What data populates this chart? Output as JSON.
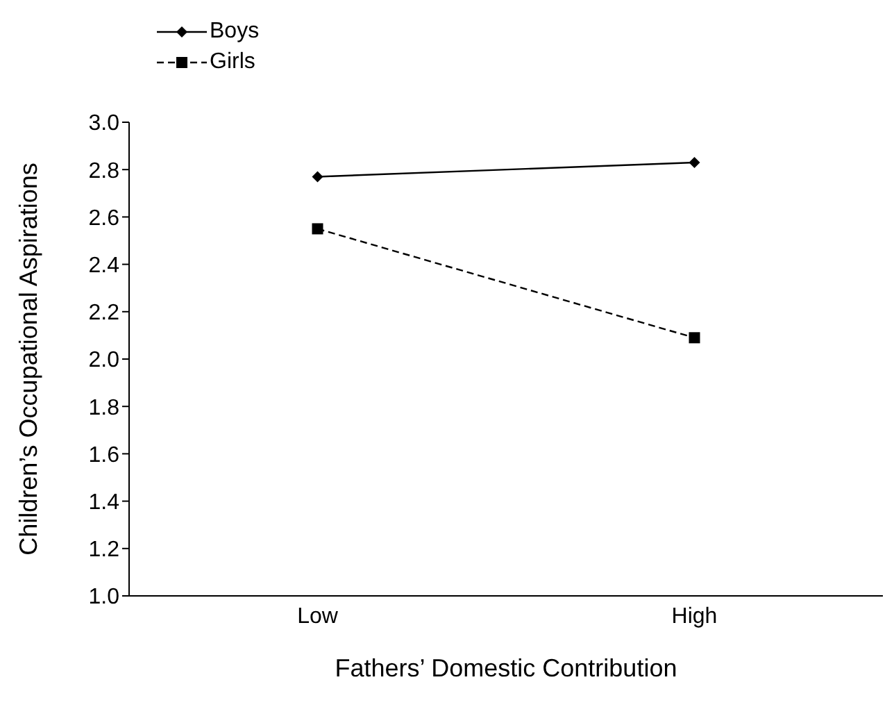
{
  "chart_data": {
    "type": "line",
    "xlabel": "Fathers’ Domestic Contribution",
    "ylabel": "Children’s Occupational Aspirations",
    "categories": [
      "Low",
      "High"
    ],
    "series": [
      {
        "name": "Boys",
        "color": "#000000",
        "values": [
          2.77,
          2.83
        ],
        "marker": "diamond",
        "line_style": "solid"
      },
      {
        "name": "Girls",
        "color": "#000000",
        "values": [
          2.55,
          2.09
        ],
        "marker": "square",
        "line_style": "dashed"
      }
    ],
    "ylim": [
      1.0,
      3.0
    ],
    "yticks": [
      {
        "value": 1.0,
        "label": "1.0"
      },
      {
        "value": 1.2,
        "label": "1.2"
      },
      {
        "value": 1.4,
        "label": "1.4"
      },
      {
        "value": 1.6,
        "label": "1.6"
      },
      {
        "value": 1.8,
        "label": "1.8"
      },
      {
        "value": 2.0,
        "label": "2.0"
      },
      {
        "value": 2.2,
        "label": "2.2"
      },
      {
        "value": 2.4,
        "label": "2.4"
      },
      {
        "value": 2.6,
        "label": "2.6"
      },
      {
        "value": 2.8,
        "label": "2.8"
      },
      {
        "value": 3.0,
        "label": "3.0"
      }
    ],
    "grid": false,
    "legend": "top left"
  }
}
